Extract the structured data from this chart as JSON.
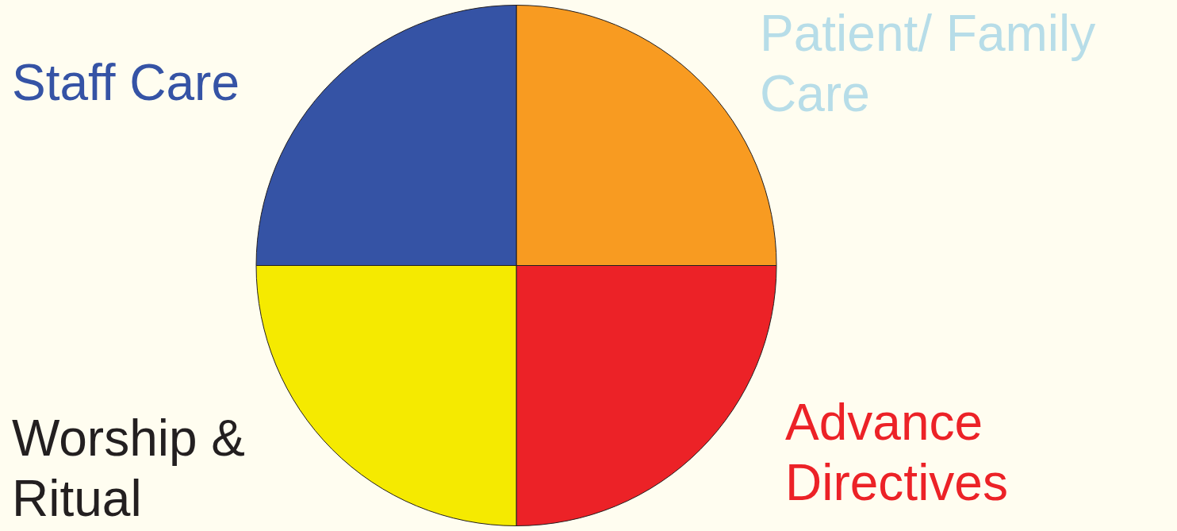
{
  "chart_data": {
    "type": "pie",
    "categories": [
      "Patient/ Family Care",
      "Advance Directives",
      "Worship & Ritual",
      "Staff Care"
    ],
    "values": [
      25,
      25,
      25,
      25
    ],
    "colors": [
      "#f89b21",
      "#ec2227",
      "#f5ea00",
      "#3553a5"
    ],
    "legend": false
  }
}
